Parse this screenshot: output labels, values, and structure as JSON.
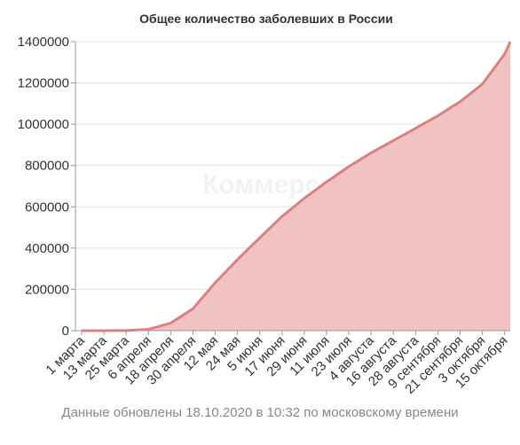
{
  "chart_data": {
    "type": "area",
    "title": "Общее количество заболевших в России",
    "watermark": "Коммерсантъ",
    "footer": "Данные обновлены 18.10.2020 в 10:32 по московскому времени",
    "x": [
      0,
      12,
      24,
      36,
      48,
      60,
      72,
      84,
      96,
      108,
      120,
      132,
      144,
      156,
      168,
      180,
      192,
      204,
      216,
      228,
      231
    ],
    "values": [
      3,
      45,
      658,
      6343,
      36793,
      106498,
      232243,
      344481,
      449834,
      553301,
      641156,
      720547,
      795038,
      861423,
      920719,
      980405,
      1041007,
      1109595,
      1194643,
      1340409,
      1399334
    ],
    "xlim": [
      0,
      231
    ],
    "xticks": [
      {
        "value": 0,
        "label": "1 марта"
      },
      {
        "value": 12,
        "label": "13 марта"
      },
      {
        "value": 24,
        "label": "25 марта"
      },
      {
        "value": 36,
        "label": "6 апреля"
      },
      {
        "value": 48,
        "label": "18 апреля"
      },
      {
        "value": 60,
        "label": "30 апреля"
      },
      {
        "value": 72,
        "label": "12 мая"
      },
      {
        "value": 84,
        "label": "24 мая"
      },
      {
        "value": 96,
        "label": "5 июня"
      },
      {
        "value": 108,
        "label": "17 июня"
      },
      {
        "value": 120,
        "label": "29 июня"
      },
      {
        "value": 132,
        "label": "11 июля"
      },
      {
        "value": 144,
        "label": "23 июля"
      },
      {
        "value": 156,
        "label": "4 августа"
      },
      {
        "value": 168,
        "label": "16 августа"
      },
      {
        "value": 180,
        "label": "28 августа"
      },
      {
        "value": 192,
        "label": "9 сентября"
      },
      {
        "value": 204,
        "label": "21 сентября"
      },
      {
        "value": 216,
        "label": "3 октября"
      },
      {
        "value": 228,
        "label": "15 октября"
      }
    ],
    "ylim": [
      0,
      1400000
    ],
    "yticks": [
      0,
      200000,
      400000,
      600000,
      800000,
      1000000,
      1200000,
      1400000
    ],
    "color": "#d9827f",
    "fill": "#f0c3c2",
    "grid": true
  }
}
